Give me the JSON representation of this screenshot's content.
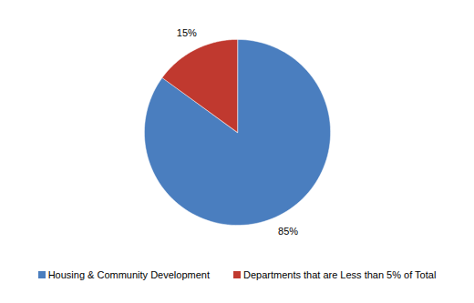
{
  "chart_data": {
    "type": "pie",
    "categories": [
      "Housing & Community Development",
      "Departments that are Less than 5% of Total"
    ],
    "values": [
      85,
      15
    ],
    "value_labels": [
      "85%",
      "15%"
    ],
    "colors": [
      "#4a7ebf",
      "#c0392f"
    ],
    "data_labels": true,
    "legend": "bottom"
  }
}
